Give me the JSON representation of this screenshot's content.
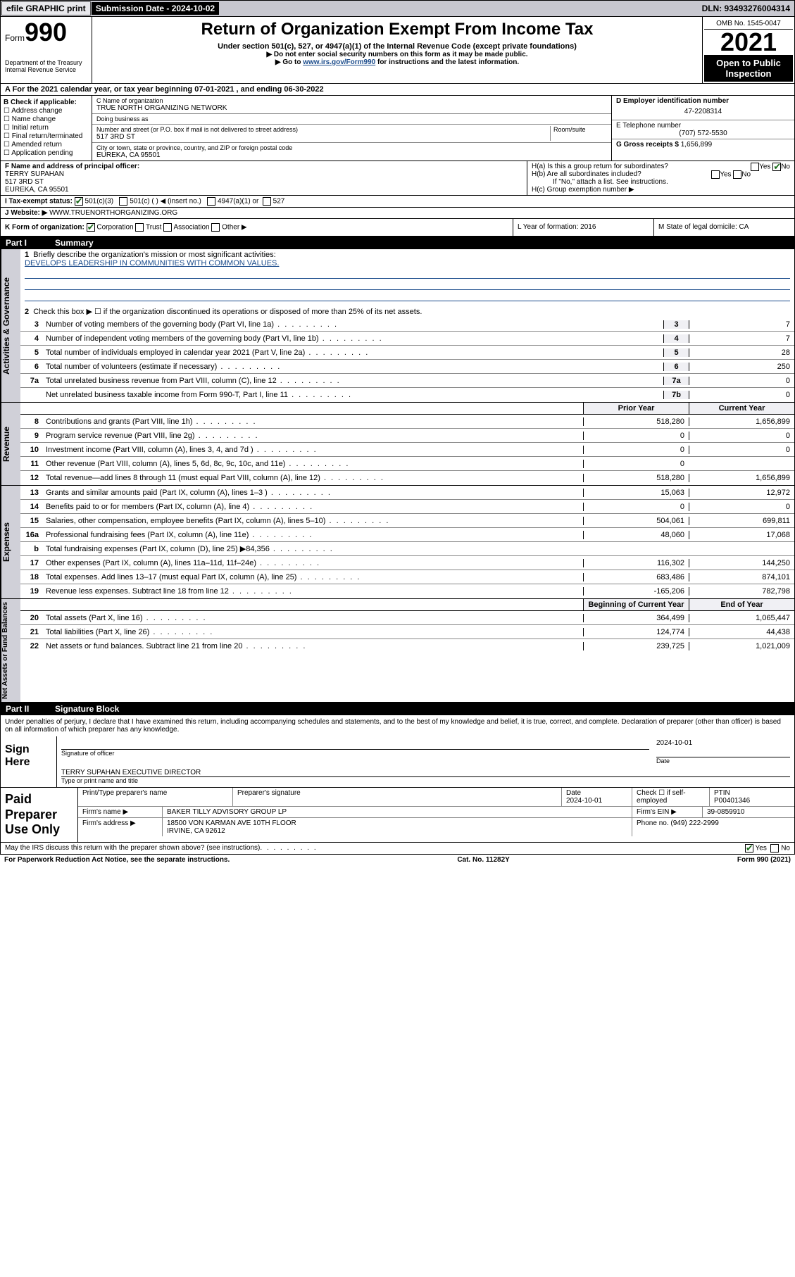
{
  "topbar": {
    "efile_btn": "efile GRAPHIC print",
    "submission_label": "Submission Date - 2024-10-02",
    "dln": "DLN: 93493276004314"
  },
  "header": {
    "form_word": "Form",
    "form_num": "990",
    "dept": "Department of the Treasury\nInternal Revenue Service",
    "title": "Return of Organization Exempt From Income Tax",
    "sub1": "Under section 501(c), 527, or 4947(a)(1) of the Internal Revenue Code (except private foundations)",
    "sub2": "▶ Do not enter social security numbers on this form as it may be made public.",
    "sub3_pre": "▶ Go to ",
    "sub3_link": "www.irs.gov/Form990",
    "sub3_post": " for instructions and the latest information.",
    "omb": "OMB No. 1545-0047",
    "year": "2021",
    "open_public": "Open to Public Inspection"
  },
  "A": {
    "text": "A  For the 2021 calendar year, or tax year beginning 07-01-2021   , and ending 06-30-2022"
  },
  "B": {
    "label": "B Check if applicable:",
    "opts": [
      "Address change",
      "Name change",
      "Initial return",
      "Final return/terminated",
      "Amended return",
      "Application pending"
    ]
  },
  "C": {
    "name_lbl": "C Name of organization",
    "name_val": "TRUE NORTH ORGANIZING NETWORK",
    "dba_lbl": "Doing business as",
    "dba_val": "",
    "street_lbl": "Number and street (or P.O. box if mail is not delivered to street address)",
    "room_lbl": "Room/suite",
    "street_val": "517 3RD ST",
    "city_lbl": "City or town, state or province, country, and ZIP or foreign postal code",
    "city_val": "EUREKA, CA  95501"
  },
  "D": {
    "ein_lbl": "D Employer identification number",
    "ein_val": "47-2208314",
    "tel_lbl": "E Telephone number",
    "tel_val": "(707) 572-5530",
    "gross_lbl": "G Gross receipts $",
    "gross_val": "1,656,899"
  },
  "F": {
    "lbl": "F  Name and address of principal officer:",
    "name": "TERRY SUPAHAN",
    "addr1": "517 3RD ST",
    "addr2": "EUREKA, CA  95501"
  },
  "H": {
    "a": "H(a)  Is this a group return for subordinates?",
    "b": "H(b)  Are all subordinates included?",
    "b_note": "If \"No,\" attach a list. See instructions.",
    "c": "H(c)  Group exemption number ▶",
    "yes": "Yes",
    "no": "No"
  },
  "I": {
    "lbl": "I   Tax-exempt status:",
    "o1": "501(c)(3)",
    "o2": "501(c) (  ) ◀ (insert no.)",
    "o3": "4947(a)(1) or",
    "o4": "527"
  },
  "J": {
    "lbl": "J   Website: ▶",
    "val": "WWW.TRUENORTHORGANIZING.ORG"
  },
  "K": {
    "lbl": "K Form of organization:",
    "o1": "Corporation",
    "o2": "Trust",
    "o3": "Association",
    "o4": "Other ▶",
    "L": "L Year of formation: 2016",
    "M": "M State of legal domicile: CA"
  },
  "part1": {
    "num": "Part I",
    "title": "Summary"
  },
  "governance": {
    "tab": "Activities & Governance",
    "l1": "Briefly describe the organization's mission or most significant activities:",
    "l1_val": "DEVELOPS LEADERSHIP IN COMMUNITIES WITH COMMON VALUES.",
    "l2": "Check this box ▶ ☐  if the organization discontinued its operations or disposed of more than 25% of its net assets.",
    "rows": [
      {
        "n": "3",
        "d": "Number of voting members of the governing body (Part VI, line 1a)",
        "box": "3",
        "v": "7"
      },
      {
        "n": "4",
        "d": "Number of independent voting members of the governing body (Part VI, line 1b)",
        "box": "4",
        "v": "7"
      },
      {
        "n": "5",
        "d": "Total number of individuals employed in calendar year 2021 (Part V, line 2a)",
        "box": "5",
        "v": "28"
      },
      {
        "n": "6",
        "d": "Total number of volunteers (estimate if necessary)",
        "box": "6",
        "v": "250"
      },
      {
        "n": "7a",
        "d": "Total unrelated business revenue from Part VIII, column (C), line 12",
        "box": "7a",
        "v": "0"
      },
      {
        "n": "",
        "d": "Net unrelated business taxable income from Form 990-T, Part I, line 11",
        "box": "7b",
        "v": "0"
      }
    ]
  },
  "revenue": {
    "tab": "Revenue",
    "h1": "Prior Year",
    "h2": "Current Year",
    "rows": [
      {
        "n": "8",
        "d": "Contributions and grants (Part VIII, line 1h)",
        "p": "518,280",
        "c": "1,656,899"
      },
      {
        "n": "9",
        "d": "Program service revenue (Part VIII, line 2g)",
        "p": "0",
        "c": "0"
      },
      {
        "n": "10",
        "d": "Investment income (Part VIII, column (A), lines 3, 4, and 7d )",
        "p": "0",
        "c": "0"
      },
      {
        "n": "11",
        "d": "Other revenue (Part VIII, column (A), lines 5, 6d, 8c, 9c, 10c, and 11e)",
        "p": "0",
        "c": ""
      },
      {
        "n": "12",
        "d": "Total revenue—add lines 8 through 11 (must equal Part VIII, column (A), line 12)",
        "p": "518,280",
        "c": "1,656,899"
      }
    ]
  },
  "expenses": {
    "tab": "Expenses",
    "rows": [
      {
        "n": "13",
        "d": "Grants and similar amounts paid (Part IX, column (A), lines 1–3 )",
        "p": "15,063",
        "c": "12,972"
      },
      {
        "n": "14",
        "d": "Benefits paid to or for members (Part IX, column (A), line 4)",
        "p": "0",
        "c": "0"
      },
      {
        "n": "15",
        "d": "Salaries, other compensation, employee benefits (Part IX, column (A), lines 5–10)",
        "p": "504,061",
        "c": "699,811"
      },
      {
        "n": "16a",
        "d": "Professional fundraising fees (Part IX, column (A), line 11e)",
        "p": "48,060",
        "c": "17,068"
      },
      {
        "n": "b",
        "d": "Total fundraising expenses (Part IX, column (D), line 25) ▶84,356",
        "p": "",
        "c": "",
        "shade": true
      },
      {
        "n": "17",
        "d": "Other expenses (Part IX, column (A), lines 11a–11d, 11f–24e)",
        "p": "116,302",
        "c": "144,250"
      },
      {
        "n": "18",
        "d": "Total expenses. Add lines 13–17 (must equal Part IX, column (A), line 25)",
        "p": "683,486",
        "c": "874,101"
      },
      {
        "n": "19",
        "d": "Revenue less expenses. Subtract line 18 from line 12",
        "p": "-165,206",
        "c": "782,798"
      }
    ]
  },
  "netassets": {
    "tab": "Net Assets or Fund Balances",
    "h1": "Beginning of Current Year",
    "h2": "End of Year",
    "rows": [
      {
        "n": "20",
        "d": "Total assets (Part X, line 16)",
        "p": "364,499",
        "c": "1,065,447"
      },
      {
        "n": "21",
        "d": "Total liabilities (Part X, line 26)",
        "p": "124,774",
        "c": "44,438"
      },
      {
        "n": "22",
        "d": "Net assets or fund balances. Subtract line 21 from line 20",
        "p": "239,725",
        "c": "1,021,009"
      }
    ]
  },
  "part2": {
    "num": "Part II",
    "title": "Signature Block"
  },
  "sig": {
    "penalty": "Under penalties of perjury, I declare that I have examined this return, including accompanying schedules and statements, and to the best of my knowledge and belief, it is true, correct, and complete. Declaration of preparer (other than officer) is based on all information of which preparer has any knowledge.",
    "sign_here": "Sign Here",
    "sig_officer": "Signature of officer",
    "sig_date": "2024-10-01",
    "date_lbl": "Date",
    "name_title": "TERRY SUPAHAN  EXECUTIVE DIRECTOR",
    "name_title_lbl": "Type or print name and title"
  },
  "preparer": {
    "label": "Paid Preparer Use Only",
    "r1": {
      "c1": "Print/Type preparer's name",
      "c2": "Preparer's signature",
      "c3": "Date\n2024-10-01",
      "c4": "Check ☐ if self-employed",
      "c5": "PTIN\nP00401346"
    },
    "r2": {
      "c1": "Firm's name    ▶",
      "c2": "BAKER TILLY ADVISORY GROUP LP",
      "c3": "Firm's EIN ▶",
      "c4": "39-0859910"
    },
    "r3": {
      "c1": "Firm's address ▶",
      "c2": "18500 VON KARMAN AVE 10TH FLOOR\nIRVINE, CA  92612",
      "c3": "Phone no. (949) 222-2999"
    }
  },
  "footer": {
    "may": "May the IRS discuss this return with the preparer shown above? (see instructions)",
    "yes": "Yes",
    "no": "No",
    "paperwork": "For Paperwork Reduction Act Notice, see the separate instructions.",
    "cat": "Cat. No. 11282Y",
    "formv": "Form 990 (2021)"
  }
}
